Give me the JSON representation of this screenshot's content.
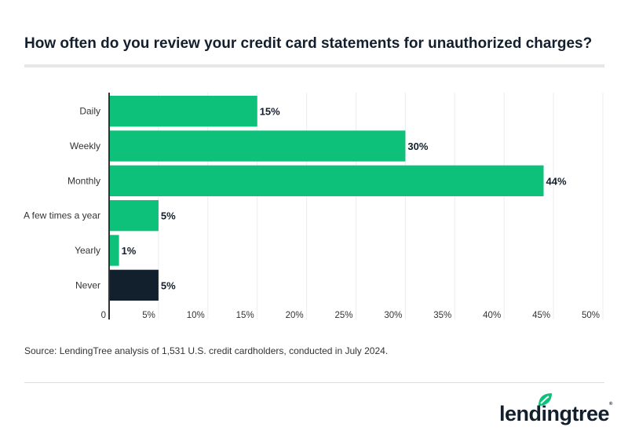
{
  "title": "How often do you review your credit card statements for unauthorized charges?",
  "source": "Source: LendingTree analysis of 1,531 U.S. credit cardholders, conducted in July 2024.",
  "logo": {
    "text": "lendingtree",
    "reg": "®"
  },
  "colors": {
    "primary": "#0dc17a",
    "highlight": "#121f2d",
    "grid": "#ececec",
    "axis": "#333333"
  },
  "chart_data": {
    "type": "bar",
    "orientation": "horizontal",
    "title": "How often do you review your credit card statements for unauthorized charges?",
    "categories": [
      "Daily",
      "Weekly",
      "Monthly",
      "A few times a year",
      "Yearly",
      "Never"
    ],
    "values": [
      15,
      30,
      44,
      5,
      1,
      5
    ],
    "data_labels": [
      "15%",
      "30%",
      "44%",
      "5%",
      "1%",
      "5%"
    ],
    "highlight": [
      false,
      false,
      false,
      false,
      false,
      true
    ],
    "xlim": [
      0,
      50
    ],
    "xticks": [
      0,
      5,
      10,
      15,
      20,
      25,
      30,
      35,
      40,
      45,
      50
    ],
    "xtick_labels": [
      "0",
      "5%",
      "10%",
      "15%",
      "20%",
      "25%",
      "30%",
      "35%",
      "40%",
      "45%",
      "50%"
    ],
    "grid": true,
    "xlabel": "",
    "ylabel": ""
  }
}
